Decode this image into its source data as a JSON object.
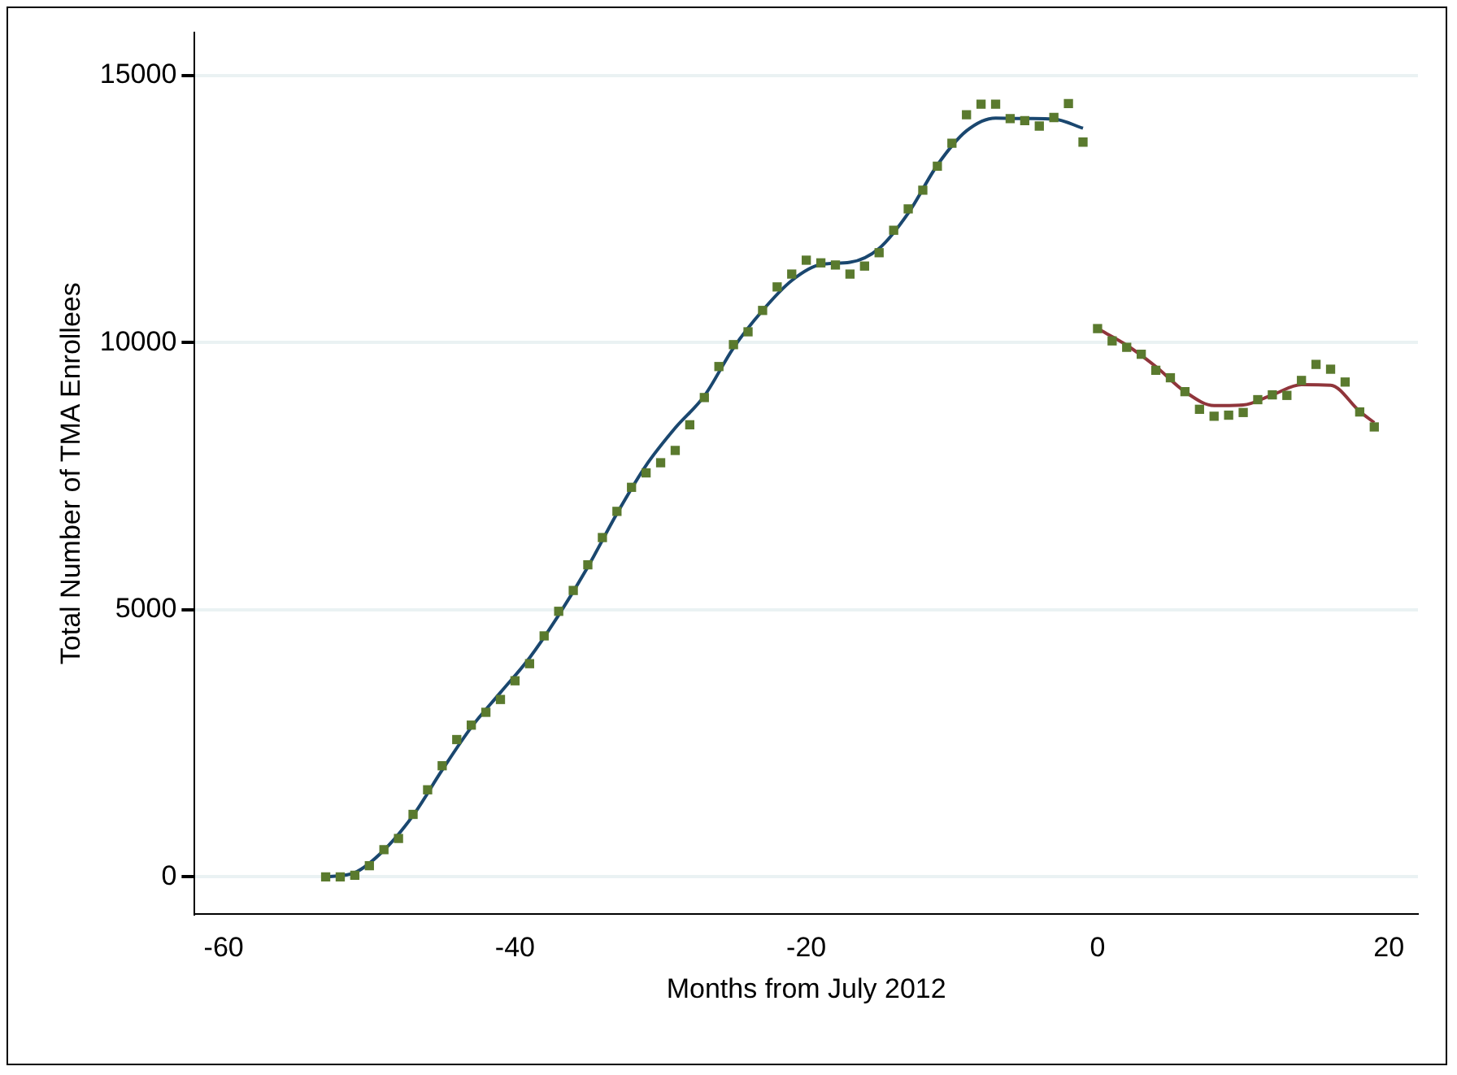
{
  "chart_data": {
    "type": "scatter",
    "xlabel": "Months from July 2012",
    "ylabel": "Total Number of TMA Enrollees",
    "xlim": [
      -62,
      22
    ],
    "xticks": [
      -60,
      -40,
      -20,
      0,
      20
    ],
    "ylim": [
      -700,
      15800
    ],
    "yticks": [
      0,
      5000,
      10000,
      15000
    ],
    "grid": "y",
    "marker": "square",
    "series": [
      {
        "color": "#5a7a2e",
        "x": [
          -53,
          -52,
          -51,
          -50,
          -49,
          -48,
          -47,
          -46,
          -45,
          -44,
          -43,
          -42,
          -41,
          -40,
          -39,
          -38,
          -37,
          -36,
          -35,
          -34,
          -33,
          -32,
          -31,
          -30,
          -29,
          -28,
          -27,
          -26,
          -25,
          -24,
          -23,
          -22,
          -21,
          -20,
          -19,
          -18,
          -17,
          -16,
          -15,
          -14,
          -13,
          -12,
          -11,
          -10,
          -9,
          -8,
          -7,
          -6,
          -5,
          -4,
          -3,
          -2,
          -1,
          0,
          1,
          2,
          3,
          4,
          5,
          6,
          7,
          8,
          9,
          10,
          11,
          12,
          13,
          14,
          15,
          16,
          17,
          18,
          19
        ],
        "values": [
          0,
          0,
          30,
          210,
          510,
          720,
          1170,
          1630,
          2080,
          2570,
          2840,
          3080,
          3320,
          3670,
          3990,
          4510,
          4970,
          5360,
          5840,
          6350,
          6840,
          7290,
          7560,
          7750,
          7980,
          8460,
          8970,
          9550,
          9960,
          10200,
          10600,
          11040,
          11280,
          11540,
          11490,
          11450,
          11280,
          11430,
          11680,
          12100,
          12500,
          12850,
          13300,
          13730,
          14260,
          14460,
          14460,
          14190,
          14150,
          14050,
          14210,
          14470,
          13750,
          10260,
          10030,
          9910,
          9780,
          9480,
          9340,
          9080,
          8750,
          8620,
          8640,
          8690,
          8930,
          9020,
          9010,
          9290,
          9590,
          9500,
          9260,
          8700,
          8420
        ]
      },
      {
        "type": "line",
        "color": "#1a476f",
        "marker": "none",
        "x": [
          -53,
          -51,
          -49,
          -47,
          -45,
          -43,
          -41,
          -39,
          -37,
          -35,
          -33,
          -31,
          -29,
          -27,
          -25,
          -23,
          -21,
          -19,
          -17,
          -15,
          -13,
          -11,
          -9,
          -7,
          -5,
          -3,
          -1
        ],
        "values": [
          0,
          80,
          500,
          1150,
          2000,
          2800,
          3450,
          4100,
          4900,
          5800,
          6800,
          7700,
          8400,
          9000,
          9900,
          10600,
          11160,
          11460,
          11500,
          11760,
          12420,
          13320,
          13960,
          14200,
          14190,
          14180,
          14010
        ]
      },
      {
        "type": "line",
        "color": "#90353b",
        "marker": "none",
        "x": [
          0,
          2,
          4,
          6,
          8,
          10,
          12,
          14,
          16,
          18,
          19
        ],
        "values": [
          10260,
          9950,
          9550,
          9080,
          8820,
          8830,
          9020,
          9210,
          9200,
          8710,
          8500
        ]
      }
    ]
  }
}
